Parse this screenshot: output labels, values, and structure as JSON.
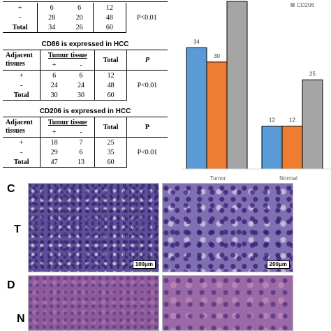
{
  "table1": {
    "rows": [
      {
        "adj": "+",
        "pos": "6",
        "neg": "6",
        "total": "12",
        "p": ""
      },
      {
        "adj": "-",
        "pos": "28",
        "neg": "20",
        "total": "48",
        "p": "P<0.01"
      },
      {
        "adj": "Total",
        "pos": "34",
        "neg": "26",
        "total": "60",
        "p": ""
      }
    ]
  },
  "table2": {
    "title": "CD86 is expressed in HCC",
    "hdr_adj": "Adjacent tissues",
    "hdr_tumor": "Tumur tissue",
    "hdr_plus": "+",
    "hdr_minus": "-",
    "hdr_total": "Total",
    "hdr_p": "P",
    "rows": [
      {
        "adj": "+",
        "pos": "6",
        "neg": "6",
        "total": "12",
        "p": ""
      },
      {
        "adj": "-",
        "pos": "24",
        "neg": "24",
        "total": "48",
        "p": "P<0.01"
      },
      {
        "adj": "Total",
        "pos": "30",
        "neg": "30",
        "total": "60",
        "p": ""
      }
    ]
  },
  "table3": {
    "title": "CD206 is expressed in HCC",
    "hdr_adj": "Adjacent tissues",
    "hdr_tumor": "Tumur tissue",
    "hdr_plus": "+",
    "hdr_minus": "-",
    "hdr_total": "Total",
    "hdr_p": "P",
    "rows": [
      {
        "adj": "+",
        "pos": "18",
        "neg": "7",
        "total": "25",
        "p": ""
      },
      {
        "adj": "-",
        "pos": "29",
        "neg": "6",
        "total": "35",
        "p": "P<0.01"
      },
      {
        "adj": "Total",
        "pos": "47",
        "neg": "13",
        "total": "60",
        "p": ""
      }
    ]
  },
  "chart_data": {
    "type": "bar",
    "categories": [
      "Tumor",
      "Normal"
    ],
    "series": [
      {
        "name": "",
        "color": "#5b9bd5",
        "values": [
          34,
          12
        ]
      },
      {
        "name": "",
        "color": "#ed7d31",
        "values": [
          30,
          12
        ]
      },
      {
        "name": "CD206",
        "color": "#a5a5a5",
        "values": [
          47,
          25
        ]
      }
    ],
    "data_labels": [
      [
        "34",
        "12"
      ],
      [
        "30",
        "12"
      ],
      [
        "",
        "25"
      ]
    ],
    "ylim": [
      0,
      47
    ],
    "legend": "top-right",
    "grid": false
  },
  "panels": {
    "c_label": "C",
    "t_label": "T",
    "d_label": "D",
    "n_label": "N",
    "scale_left": "100μm",
    "scale_right": "200μm"
  }
}
